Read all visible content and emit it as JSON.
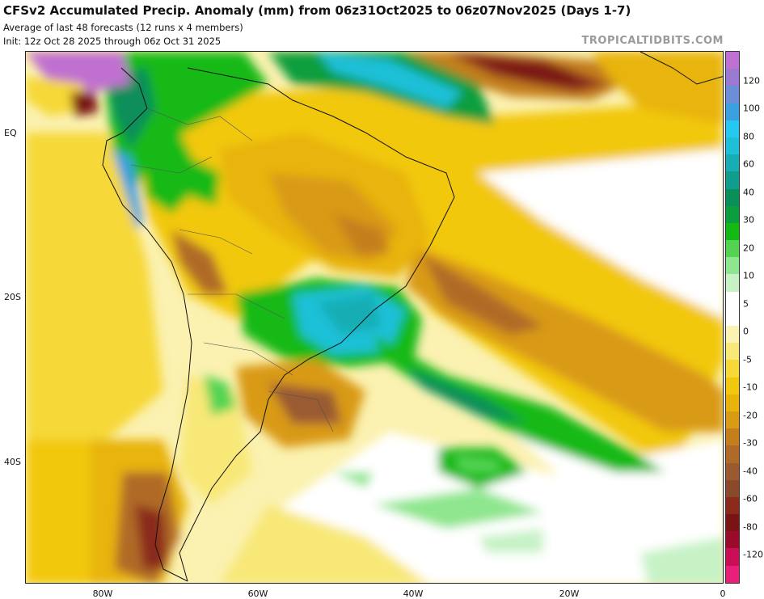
{
  "header": {
    "title": "CFSv2 Accumulated Precip. Anomaly (mm) from 06z31Oct2025 to 06z07Nov2025 (Days 1-7)",
    "subtitle": "Average of last 48 forecasts (12 runs x 4 members)",
    "init": "Init: 12z Oct 28 2025 through 06z Oct 31 2025",
    "brand": "TROPICALTIDBITS.COM"
  },
  "map": {
    "region": "South America and South Atlantic",
    "lat_labels": [
      "EQ",
      "20S",
      "40S"
    ],
    "lon_labels": [
      "80W",
      "60W",
      "40W",
      "20W",
      "0"
    ]
  },
  "legend": {
    "units": "mm",
    "bands": [
      {
        "color": "#e8207a"
      },
      {
        "color": "#c90e55"
      },
      {
        "color": "#9b0a2a"
      },
      {
        "color": "#7a1414"
      },
      {
        "color": "#8b2a1a"
      },
      {
        "color": "#8a4a2a"
      },
      {
        "color": "#9a5a30"
      },
      {
        "color": "#b06a28"
      },
      {
        "color": "#c47f1c"
      },
      {
        "color": "#d99a14"
      },
      {
        "color": "#e8b40c"
      },
      {
        "color": "#f2c80e"
      },
      {
        "color": "#f6d838"
      },
      {
        "color": "#f8e878"
      },
      {
        "color": "#fbf3b4"
      },
      {
        "color": "#ffffff"
      },
      {
        "color": "#ffffff"
      },
      {
        "color": "#c6f2c6"
      },
      {
        "color": "#8ee68e"
      },
      {
        "color": "#52d452"
      },
      {
        "color": "#14b914"
      },
      {
        "color": "#0a9e3c"
      },
      {
        "color": "#0a8e5a"
      },
      {
        "color": "#0f9e8e"
      },
      {
        "color": "#16aeb4"
      },
      {
        "color": "#1ec0d8"
      },
      {
        "color": "#24c8f0"
      },
      {
        "color": "#3aa0e0"
      },
      {
        "color": "#6a8ed8"
      },
      {
        "color": "#9a7ad0"
      },
      {
        "color": "#c070d0"
      }
    ],
    "labels": [
      "120",
      "100",
      "80",
      "60",
      "40",
      "30",
      "20",
      "10",
      "5",
      "0",
      "-5",
      "-10",
      "-20",
      "-30",
      "-40",
      "-60",
      "-80",
      "-120"
    ]
  }
}
